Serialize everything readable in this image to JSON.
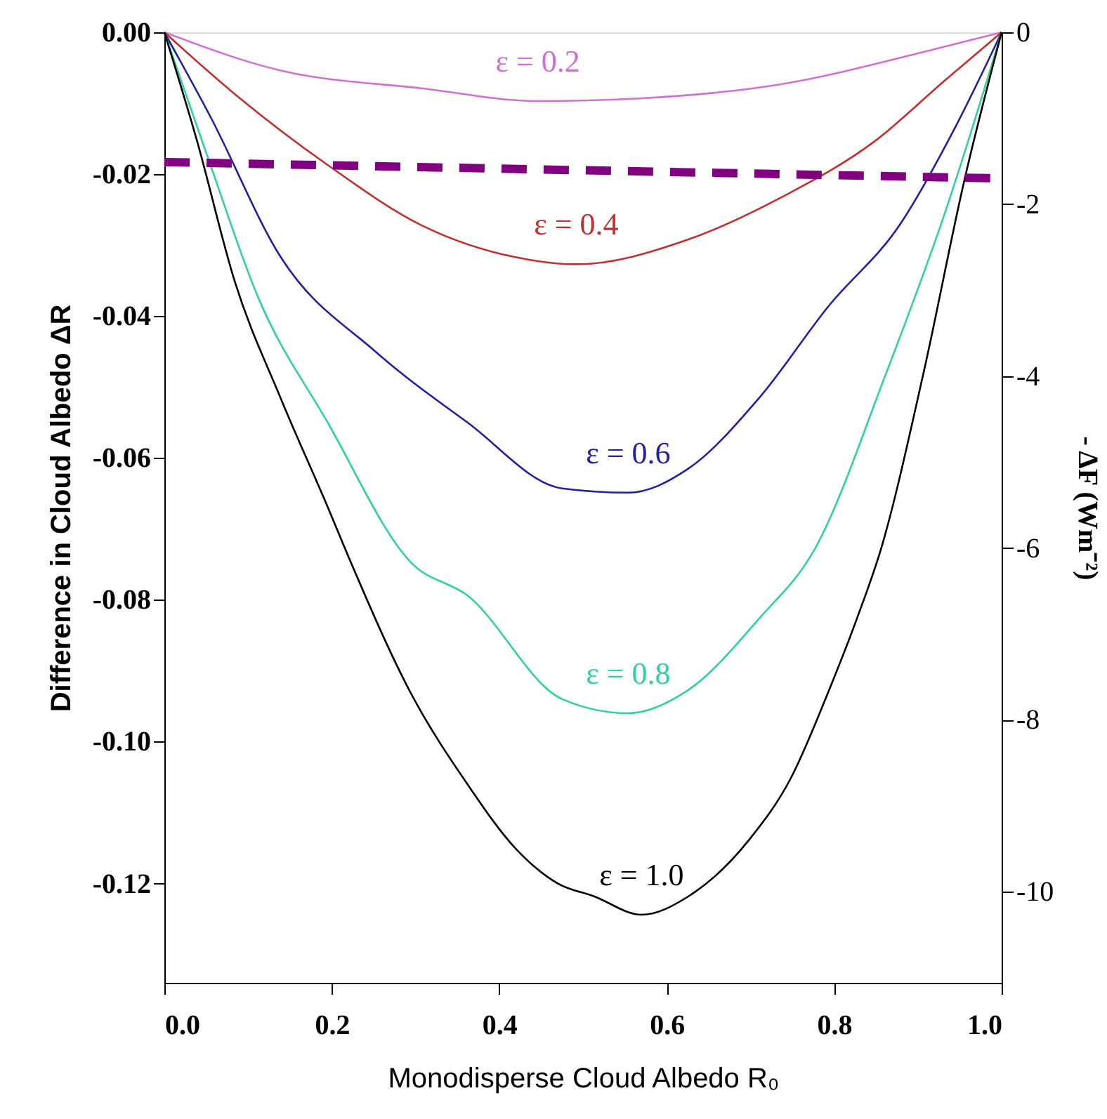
{
  "chart_data": {
    "type": "line",
    "xlabel": "Monodisperse Cloud Albedo R₀",
    "ylabel": "Difference in Cloud Albedo ΔR",
    "y2label": "- ΔF (Wm⁻²)",
    "xlim": [
      0,
      1
    ],
    "ylim": [
      -0.134,
      0
    ],
    "y2lim": [
      -11.06,
      0
    ],
    "xticks": [
      {
        "value": 0,
        "label": "0.0"
      },
      {
        "value": 0.2,
        "label": "0.2"
      },
      {
        "value": 0.4,
        "label": "0.4"
      },
      {
        "value": 0.6,
        "label": "0.6"
      },
      {
        "value": 0.8,
        "label": "0.8"
      },
      {
        "value": 1,
        "label": "1.0"
      }
    ],
    "yticks": [
      {
        "value": 0,
        "label": "0.00"
      },
      {
        "value": -0.02,
        "label": "-0.02"
      },
      {
        "value": -0.04,
        "label": "-0.04"
      },
      {
        "value": -0.06,
        "label": "-0.06"
      },
      {
        "value": -0.08,
        "label": "-0.08"
      },
      {
        "value": -0.1,
        "label": "-0.10"
      },
      {
        "value": -0.12,
        "label": "-0.12"
      }
    ],
    "y2ticks": [
      0,
      -2,
      -4,
      -6,
      -8,
      -10
    ],
    "grid": false,
    "marker": "none",
    "series": [
      {
        "name": "ε = 0.2",
        "color": "#d070d0",
        "x": [
          0,
          0.139,
          0.307,
          0.446,
          0.57,
          0.738,
          0.906,
          1
        ],
        "values": [
          0,
          -0.0054,
          -0.0079,
          -0.0097,
          -0.0093,
          -0.0073,
          -0.0028,
          0
        ]
      },
      {
        "name": "ε = 0.4",
        "color": "#c03030",
        "x": [
          0,
          0.084,
          0.195,
          0.307,
          0.419,
          0.492,
          0.626,
          0.738,
          0.849,
          0.933,
          1
        ],
        "values": [
          0,
          -0.0087,
          -0.0187,
          -0.0272,
          -0.0317,
          -0.0327,
          -0.0292,
          -0.0232,
          -0.0153,
          -0.0067,
          0
        ]
      },
      {
        "name": "ε = 0.6",
        "color": "#2020a0",
        "x": [
          0,
          0.055,
          0.139,
          0.252,
          0.362,
          0.475,
          0.554,
          0.626,
          0.71,
          0.794,
          0.878,
          0.945,
          1
        ],
        "values": [
          0,
          -0.0119,
          -0.0317,
          -0.045,
          -0.055,
          -0.0643,
          -0.0649,
          -0.0615,
          -0.0516,
          -0.0385,
          -0.0272,
          -0.0133,
          0
        ]
      },
      {
        "name": "ε = 0.8",
        "color": "#30d0a0",
        "x": [
          0,
          0.055,
          0.111,
          0.195,
          0.295,
          0.362,
          0.475,
          0.554,
          0.626,
          0.71,
          0.777,
          0.861,
          0.933,
          1
        ],
        "values": [
          0,
          -0.0187,
          -0.0371,
          -0.055,
          -0.0748,
          -0.0794,
          -0.094,
          -0.096,
          -0.0927,
          -0.0827,
          -0.0728,
          -0.0484,
          -0.0252,
          0
        ]
      },
      {
        "name": "ε = 1.0",
        "color": "#000000",
        "x": [
          0,
          0.039,
          0.084,
          0.139,
          0.195,
          0.223,
          0.295,
          0.362,
          0.419,
          0.47,
          0.513,
          0.57,
          0.626,
          0.698,
          0.748,
          0.794,
          0.827,
          0.856,
          0.906,
          0.956,
          1
        ],
        "values": [
          0,
          -0.0153,
          -0.0351,
          -0.0516,
          -0.0669,
          -0.0748,
          -0.0933,
          -0.106,
          -0.115,
          -0.12,
          -0.1218,
          -0.1244,
          -0.1218,
          -0.1139,
          -0.1052,
          -0.0927,
          -0.0827,
          -0.0728,
          -0.0484,
          -0.0206,
          0
        ]
      },
      {
        "color": "#800080",
        "line_style": "dashed",
        "x": [
          0,
          1
        ],
        "values": [
          -0.0183,
          -0.0206
        ]
      }
    ]
  }
}
